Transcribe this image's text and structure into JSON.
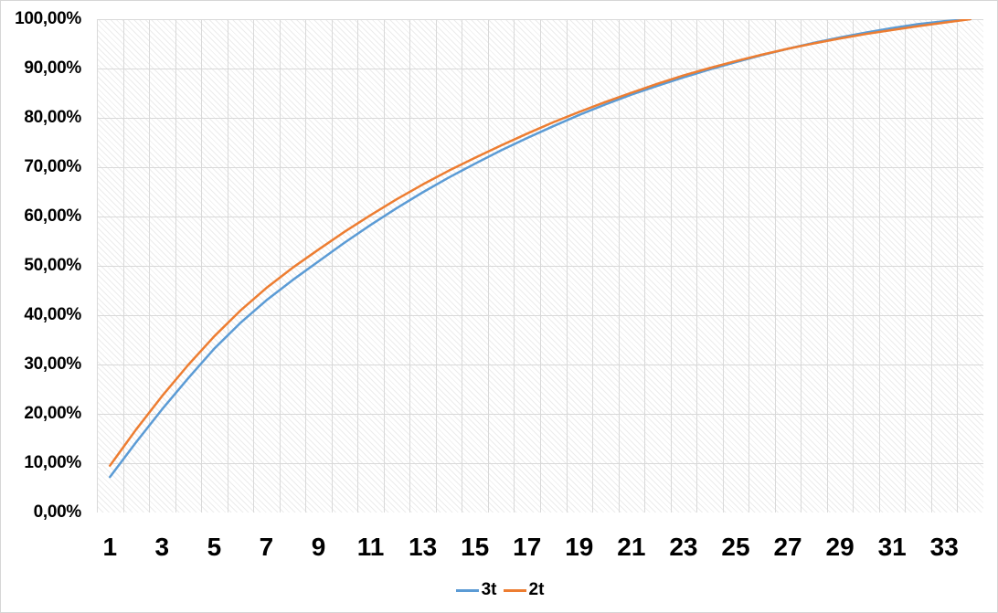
{
  "colors": {
    "series_blue": "#5B9BD5",
    "series_orange": "#ED7D31",
    "gridline": "#D9D9D9",
    "plot_hatch": "#E7E7E7",
    "axis_text": "#000000",
    "chart_border": "#D6D6D6",
    "background": "#FFFFFF"
  },
  "chart_data": {
    "type": "line",
    "title": "",
    "xlabel": "",
    "ylabel": "",
    "ylim": [
      0,
      100
    ],
    "y_tick_step_pct": 10,
    "grid": "both",
    "plot_background": "diagonal-hatch",
    "legend_position": "bottom-center",
    "x": [
      1,
      2,
      3,
      4,
      5,
      6,
      7,
      8,
      9,
      10,
      11,
      12,
      13,
      14,
      15,
      16,
      17,
      18,
      19,
      20,
      21,
      22,
      23,
      24,
      25,
      26,
      27,
      28,
      29,
      30,
      31,
      32,
      33,
      34
    ],
    "x_tick_labels": [
      "1",
      "3",
      "5",
      "7",
      "9",
      "11",
      "13",
      "15",
      "17",
      "19",
      "21",
      "23",
      "25",
      "27",
      "29",
      "31",
      "33"
    ],
    "y_tick_labels": [
      "0,00%",
      "10,00%",
      "20,00%",
      "30,00%",
      "40,00%",
      "50,00%",
      "60,00%",
      "70,00%",
      "80,00%",
      "90,00%",
      "100,00%"
    ],
    "series": [
      {
        "name": "3t",
        "color": "#5B9BD5",
        "values": [
          7.2,
          14.2,
          20.9,
          27.2,
          33.2,
          38.4,
          43.0,
          47.1,
          50.9,
          54.7,
          58.3,
          61.7,
          64.9,
          67.9,
          70.7,
          73.4,
          75.9,
          78.3,
          80.6,
          82.7,
          84.7,
          86.5,
          88.2,
          89.8,
          91.3,
          92.7,
          94.0,
          95.2,
          96.3,
          97.3,
          98.2,
          99.0,
          99.6,
          100.0
        ]
      },
      {
        "name": "2t",
        "color": "#ED7D31",
        "values": [
          9.5,
          16.8,
          23.6,
          29.9,
          35.7,
          40.9,
          45.5,
          49.6,
          53.3,
          56.9,
          60.3,
          63.5,
          66.5,
          69.3,
          71.9,
          74.4,
          76.8,
          79.1,
          81.2,
          83.2,
          85.1,
          86.9,
          88.6,
          90.1,
          91.5,
          92.8,
          94.0,
          95.1,
          96.1,
          97.0,
          97.8,
          98.6,
          99.3,
          100.0
        ]
      }
    ]
  }
}
